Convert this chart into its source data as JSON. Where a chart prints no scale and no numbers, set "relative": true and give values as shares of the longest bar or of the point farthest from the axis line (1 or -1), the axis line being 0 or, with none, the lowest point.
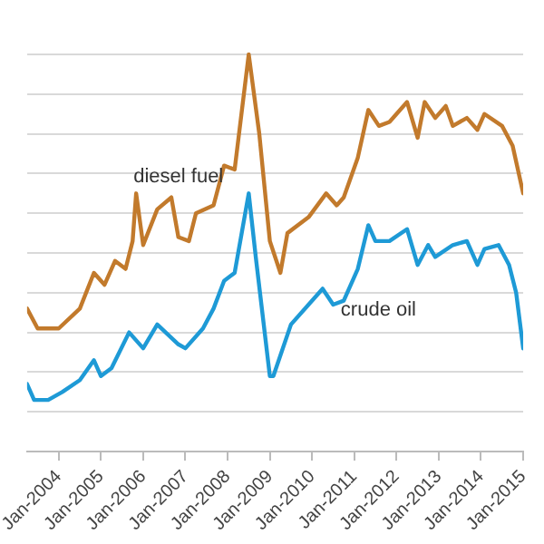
{
  "chart_data": {
    "type": "line",
    "relative": true,
    "grid": "y",
    "legend": false,
    "marker": "none",
    "line_style": "solid",
    "xlim": [
      "2003-04",
      "2015-01"
    ],
    "xticks": [
      {
        "value": "2004-01",
        "label": "Jan-2004"
      },
      {
        "value": "2005-01",
        "label": "Jan-2005"
      },
      {
        "value": "2006-01",
        "label": "Jan-2006"
      },
      {
        "value": "2007-01",
        "label": "Jan-2007"
      },
      {
        "value": "2008-01",
        "label": "Jan-2008"
      },
      {
        "value": "2009-01",
        "label": "Jan-2009"
      },
      {
        "value": "2010-01",
        "label": "Jan-2010"
      },
      {
        "value": "2011-01",
        "label": "Jan-2011"
      },
      {
        "value": "2012-01",
        "label": "Jan-2012"
      },
      {
        "value": "2013-01",
        "label": "Jan-2013"
      },
      {
        "value": "2014-01",
        "label": "Jan-2014"
      },
      {
        "value": "2015-01",
        "label": "Jan-2015"
      }
    ],
    "series": [
      {
        "name": "diesel fuel",
        "color": "#c27a2c",
        "x": [
          "2003-04",
          "2003-07",
          "2004-01",
          "2004-07",
          "2004-11",
          "2005-02",
          "2005-05",
          "2005-08",
          "2005-10",
          "2005-11",
          "2006-01",
          "2006-05",
          "2006-09",
          "2006-11",
          "2007-02",
          "2007-04",
          "2007-09",
          "2007-12",
          "2008-03",
          "2008-07",
          "2008-10",
          "2009-01",
          "2009-04",
          "2009-06",
          "2009-12",
          "2010-05",
          "2010-08",
          "2010-10",
          "2011-02",
          "2011-05",
          "2011-08",
          "2011-11",
          "2012-04",
          "2012-07",
          "2012-09",
          "2012-12",
          "2013-03",
          "2013-05",
          "2013-09",
          "2013-12",
          "2014-02",
          "2014-07",
          "2014-10",
          "2015-01"
        ],
        "values": [
          0.36,
          0.31,
          0.31,
          0.36,
          0.45,
          0.42,
          0.48,
          0.46,
          0.53,
          0.65,
          0.52,
          0.61,
          0.64,
          0.54,
          0.53,
          0.6,
          0.62,
          0.72,
          0.71,
          1,
          0.8,
          0.53,
          0.45,
          0.55,
          0.59,
          0.65,
          0.62,
          0.64,
          0.74,
          0.86,
          0.82,
          0.83,
          0.88,
          0.79,
          0.88,
          0.84,
          0.87,
          0.82,
          0.84,
          0.81,
          0.85,
          0.82,
          0.77,
          0.65
        ]
      },
      {
        "name": "crude oil",
        "color": "#1e9ad6",
        "x": [
          "2003-04",
          "2003-06",
          "2003-10",
          "2004-02",
          "2004-07",
          "2004-11",
          "2005-01",
          "2005-04",
          "2005-09",
          "2006-01",
          "2006-05",
          "2006-11",
          "2007-01",
          "2007-06",
          "2007-09",
          "2007-12",
          "2008-03",
          "2008-07",
          "2008-09",
          "2009-01",
          "2009-02",
          "2009-07",
          "2009-12",
          "2010-04",
          "2010-07",
          "2010-10",
          "2011-02",
          "2011-05",
          "2011-07",
          "2011-11",
          "2012-04",
          "2012-07",
          "2012-10",
          "2012-12",
          "2013-05",
          "2013-09",
          "2013-12",
          "2014-02",
          "2014-06",
          "2014-09",
          "2014-11",
          "2015-01"
        ],
        "values": [
          0.17,
          0.13,
          0.13,
          0.15,
          0.18,
          0.23,
          0.19,
          0.21,
          0.3,
          0.26,
          0.32,
          0.27,
          0.26,
          0.31,
          0.36,
          0.43,
          0.45,
          0.65,
          0.49,
          0.19,
          0.19,
          0.32,
          0.37,
          0.41,
          0.37,
          0.38,
          0.46,
          0.57,
          0.53,
          0.53,
          0.56,
          0.47,
          0.52,
          0.49,
          0.52,
          0.53,
          0.47,
          0.51,
          0.52,
          0.47,
          0.4,
          0.26
        ]
      }
    ]
  }
}
